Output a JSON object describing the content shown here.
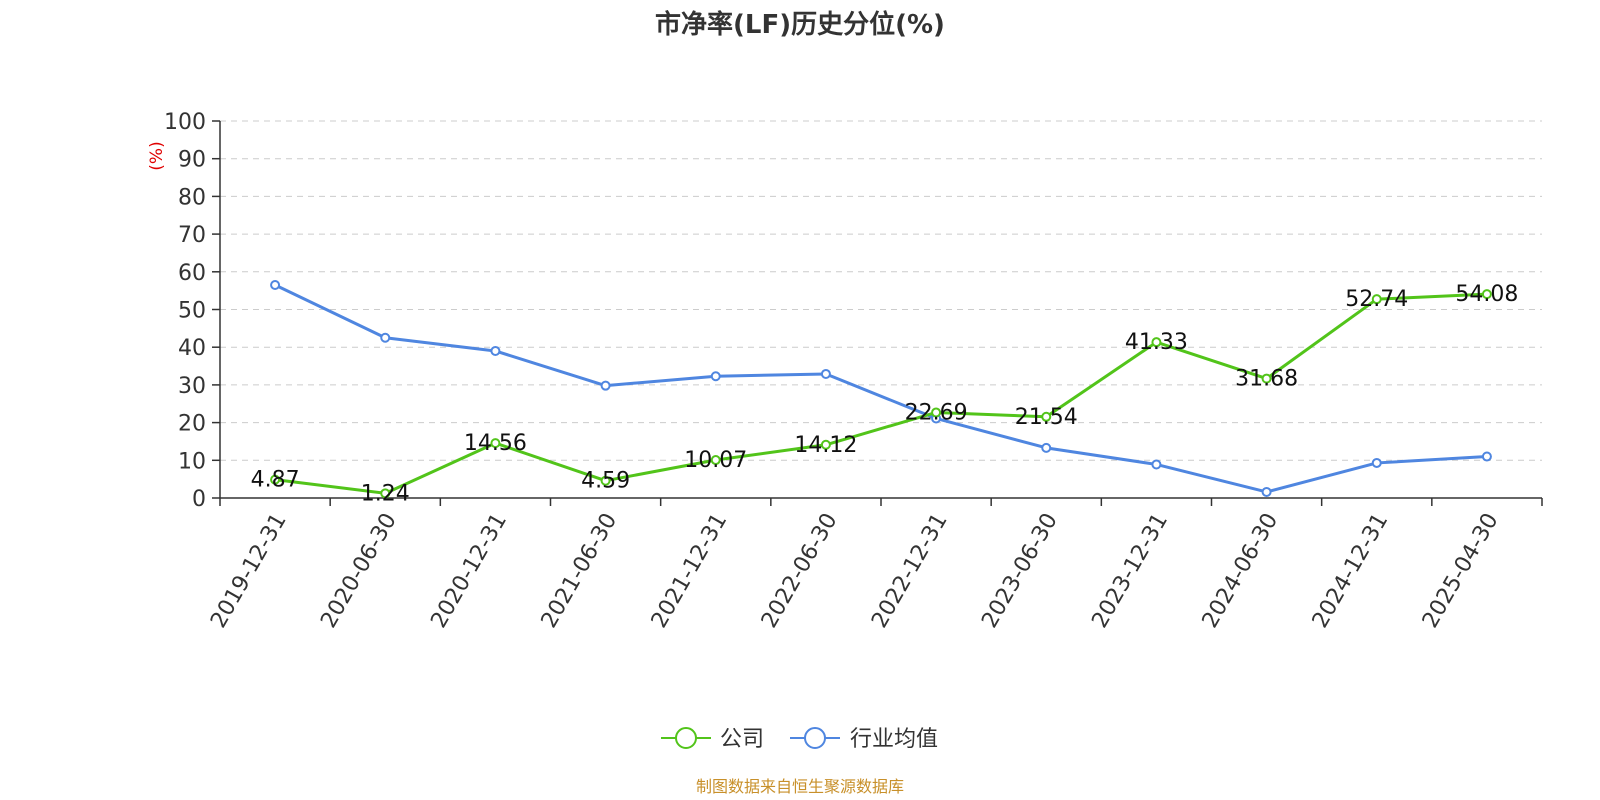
{
  "chart_data": {
    "type": "line",
    "title": "市净率(LF)历史分位(%)",
    "ylabel": "(%)",
    "ylim": [
      0,
      100
    ],
    "yticks": [
      0,
      10,
      20,
      30,
      40,
      50,
      60,
      70,
      80,
      90,
      100
    ],
    "categories": [
      "2019-12-31",
      "2020-06-30",
      "2020-12-31",
      "2021-06-30",
      "2021-12-31",
      "2022-06-30",
      "2022-12-31",
      "2023-06-30",
      "2023-12-31",
      "2024-06-30",
      "2024-12-31",
      "2025-04-30"
    ],
    "series": [
      {
        "name": "公司",
        "color": "#52c41a",
        "values": [
          4.87,
          1.24,
          14.56,
          4.59,
          10.07,
          14.12,
          22.69,
          21.54,
          41.33,
          31.68,
          52.74,
          54.08
        ],
        "labels": [
          "4.87",
          "1.24",
          "14.56",
          "4.59",
          "10.07",
          "14.12",
          "22.69",
          "21.54",
          "41.33",
          "31.68",
          "52.74",
          "54.08"
        ]
      },
      {
        "name": "行业均值",
        "color": "#4f86e0",
        "values": [
          56.5,
          42.5,
          39,
          29.8,
          32.3,
          32.9,
          21.1,
          13.3,
          8.9,
          1.6,
          9.3,
          11
        ]
      }
    ],
    "grid": true,
    "legend_position": "bottom-center"
  },
  "source_text": "制图数据来自恒生聚源数据库",
  "colors": {
    "ylabel": "#e00000",
    "source": "#c8902a",
    "grid": "#cccccc",
    "axis": "#333333"
  }
}
